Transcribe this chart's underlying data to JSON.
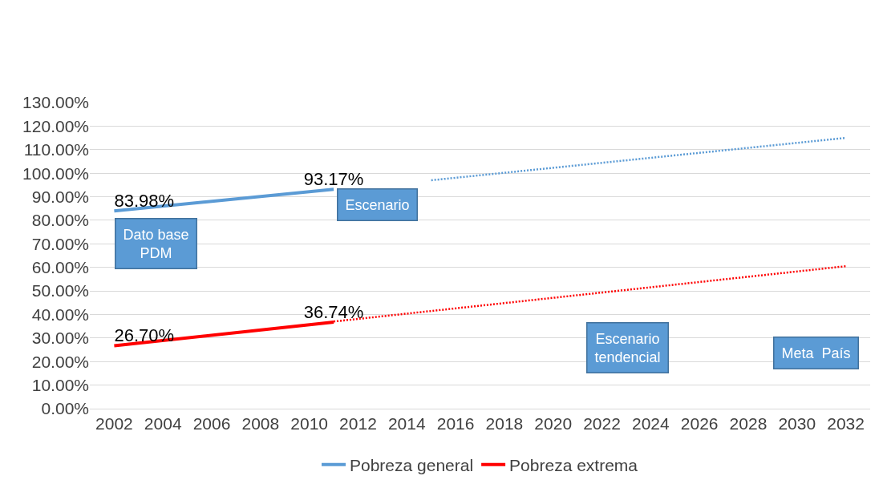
{
  "chart_data": {
    "type": "line",
    "x": [
      2002,
      2011
    ],
    "series": [
      {
        "name": "Pobreza general",
        "color": "#5b9bd5",
        "values": [
          83.98,
          93.17
        ],
        "value_labels": [
          "83.98%",
          "93.17%"
        ]
      },
      {
        "name": "Pobreza extrema",
        "color": "#ff0000",
        "values": [
          26.7,
          36.74
        ],
        "value_labels": [
          "26.70%",
          "36.74%"
        ]
      },
      {
        "color": "#5b9bd5",
        "x": [
          2015,
          2032
        ],
        "values": [
          97,
          115
        ],
        "line_style": "dotted"
      },
      {
        "color": "#ff0000",
        "x": [
          2011,
          2032
        ],
        "values": [
          37,
          60.5
        ],
        "line_style": "dotted"
      }
    ],
    "annotations": [
      "Dato base\nPDM",
      "Escenario",
      "Escenario\ntendencial",
      "Meta  País"
    ],
    "xlim": [
      2001,
      2033
    ],
    "xticks": [
      2002,
      2004,
      2006,
      2008,
      2010,
      2012,
      2014,
      2016,
      2018,
      2020,
      2022,
      2024,
      2026,
      2028,
      2030,
      2032
    ],
    "ylim": [
      0,
      130
    ],
    "yticks": [
      {
        "value": 0,
        "label": "0.00%"
      },
      {
        "value": 10,
        "label": "10.00%"
      },
      {
        "value": 20,
        "label": "20.00%"
      },
      {
        "value": 30,
        "label": "30.00%"
      },
      {
        "value": 40,
        "label": "40.00%"
      },
      {
        "value": 50,
        "label": "50.00%"
      },
      {
        "value": 60,
        "label": "60.00%"
      },
      {
        "value": 70,
        "label": "70.00%"
      },
      {
        "value": 80,
        "label": "80.00%"
      },
      {
        "value": 90,
        "label": "90.00%"
      },
      {
        "value": 100,
        "label": "100.00%"
      },
      {
        "value": 110,
        "label": "110.00%"
      },
      {
        "value": 120,
        "label": "120.00%"
      },
      {
        "value": 130,
        "label": "130.00%"
      }
    ],
    "grid": "y",
    "legend": "bottom",
    "marker": "none",
    "line_style": "solid"
  }
}
